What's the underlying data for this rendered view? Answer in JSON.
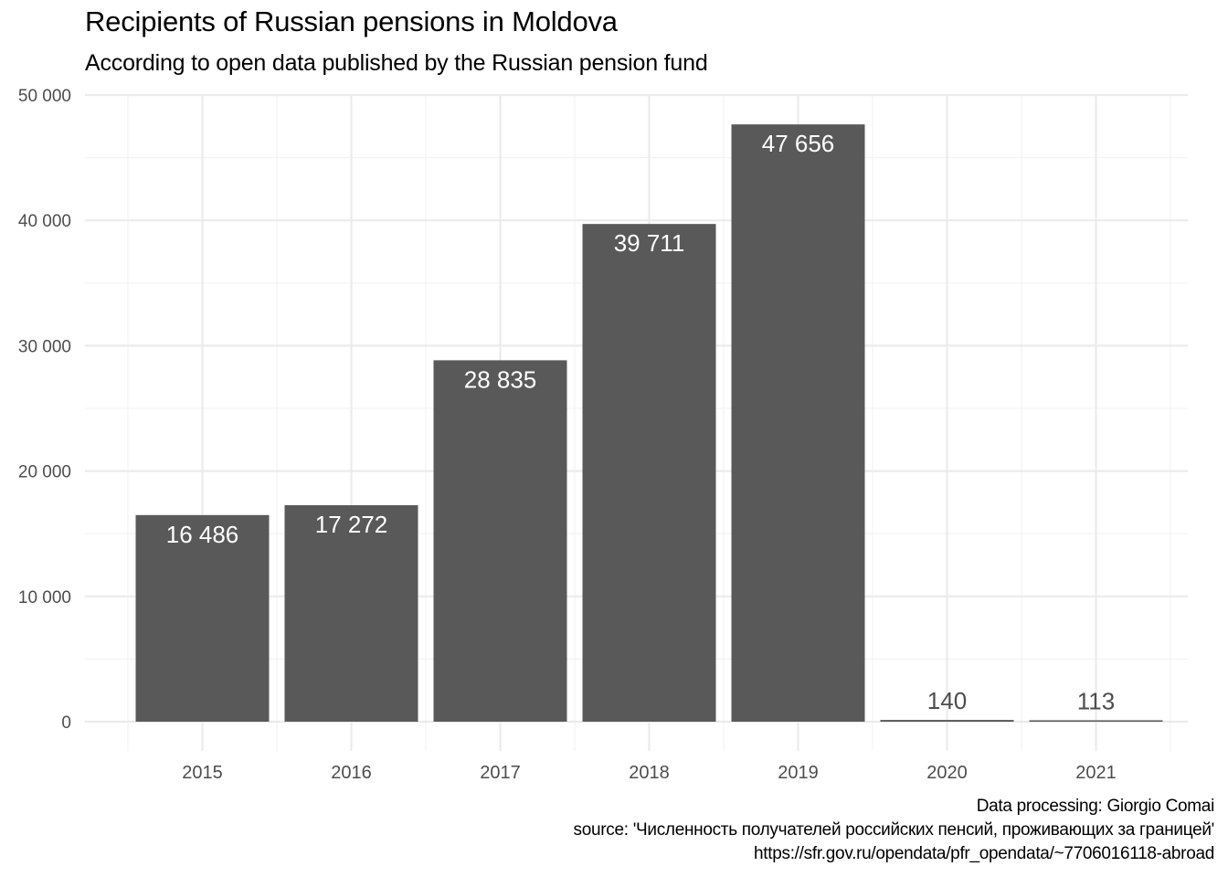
{
  "chart_data": {
    "type": "bar",
    "title": "Recipients of Russian pensions in Moldova",
    "subtitle": "According to open data published by the Russian pension fund",
    "categories": [
      "2015",
      "2016",
      "2017",
      "2018",
      "2019",
      "2020",
      "2021"
    ],
    "values": [
      16486,
      17272,
      28835,
      39711,
      47656,
      140,
      113
    ],
    "data_labels": [
      "16 486",
      "17 272",
      "28 835",
      "39 711",
      "47 656",
      "140",
      "113"
    ],
    "xlabel": "",
    "ylabel": "",
    "ylim": [
      0,
      50000
    ],
    "y_ticks": [
      0,
      10000,
      20000,
      30000,
      40000,
      50000
    ],
    "y_tick_labels": [
      "0",
      "10 000",
      "20 000",
      "30 000",
      "40 000",
      "50 000"
    ],
    "grid": true,
    "legend": "none",
    "bar_color": "#595959"
  },
  "caption": {
    "line1": "Data processing: Giorgio Comai",
    "line2": "source: 'Численность получателей российских пенсий, проживающих за границей'",
    "line3": "https://sfr.gov.ru/opendata/pfr_opendata/~7706016118-abroad"
  },
  "colors": {
    "bar": "#595959",
    "grid_major": "#ebebeb",
    "grid_minor": "#f3f3f3",
    "tick_label": "#4d4d4d",
    "label_inside": "#ffffff",
    "label_outside": "#4d4d4d"
  }
}
